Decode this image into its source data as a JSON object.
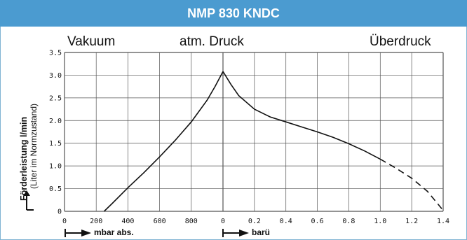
{
  "title": "NMP 830 KNDC",
  "regions": {
    "left": "Vakuum",
    "center": "atm. Druck",
    "right": "Überdruck"
  },
  "y_label_bold": "Förderleistung l/min",
  "y_label_paren": "(Liter im Normzustand)",
  "x_unit_left": "mbar abs.",
  "x_unit_right": "barü",
  "colors": {
    "title_bg": "#4b9bd0",
    "title_text": "#ffffff",
    "line": "#111111",
    "grid": "#555555"
  },
  "chart_data": {
    "type": "line",
    "title": "NMP 830 KNDC",
    "ylabel": "Förderleistung l/min (Liter im Normzustand)",
    "ylim": [
      0,
      3.5
    ],
    "y_ticks": [
      "0",
      "0.5",
      "1.0",
      "1.5",
      "2.0",
      "2.5",
      "3.0",
      "3.5"
    ],
    "grid": true,
    "panels": [
      {
        "name": "Vakuum",
        "xlabel": "mbar abs.",
        "xlim": [
          0,
          1000
        ],
        "x_ticks": [
          "0",
          "200",
          "400",
          "600",
          "800",
          "0"
        ],
        "points": [
          [
            250,
            0
          ],
          [
            300,
            0.17
          ],
          [
            400,
            0.52
          ],
          [
            500,
            0.85
          ],
          [
            600,
            1.2
          ],
          [
            700,
            1.57
          ],
          [
            800,
            1.97
          ],
          [
            900,
            2.45
          ],
          [
            950,
            2.75
          ],
          [
            1000,
            3.08
          ]
        ]
      },
      {
        "name": "Überdruck",
        "xlabel": "barü",
        "xlim": [
          0,
          1.4
        ],
        "x_ticks": [
          "0.2",
          "0.4",
          "0.6",
          "0.8",
          "1.0",
          "1.2",
          "1.4"
        ],
        "points": [
          [
            0,
            3.08
          ],
          [
            0.05,
            2.8
          ],
          [
            0.1,
            2.55
          ],
          [
            0.2,
            2.25
          ],
          [
            0.3,
            2.08
          ],
          [
            0.4,
            1.97
          ],
          [
            0.5,
            1.86
          ],
          [
            0.6,
            1.75
          ],
          [
            0.7,
            1.63
          ],
          [
            0.8,
            1.49
          ],
          [
            0.9,
            1.33
          ],
          [
            1.0,
            1.15
          ]
        ],
        "dashed_points": [
          [
            1.0,
            1.15
          ],
          [
            1.1,
            0.95
          ],
          [
            1.2,
            0.73
          ],
          [
            1.3,
            0.44
          ],
          [
            1.4,
            0.02
          ]
        ]
      }
    ]
  }
}
